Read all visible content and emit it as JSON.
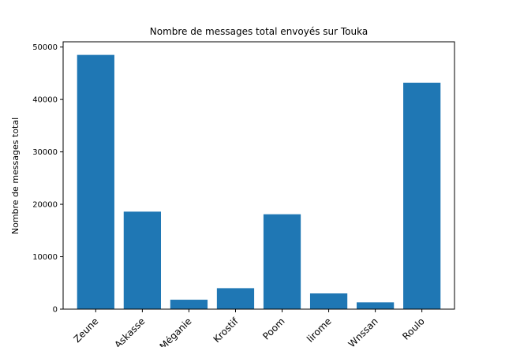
{
  "chart_data": {
    "type": "bar",
    "title": "Nombre de messages total envoyés sur Touka",
    "xlabel": "",
    "ylabel": "Nombre de messages total",
    "categories": [
      "Zeune",
      "Askasse",
      "Méganie",
      "Krostif",
      "Poom",
      "lirome",
      "Wnssan",
      "Roulo"
    ],
    "values": [
      48500,
      18600,
      1800,
      4000,
      18100,
      3000,
      1300,
      43200
    ],
    "ylim": [
      0,
      51000
    ],
    "yticks": [
      0,
      10000,
      20000,
      30000,
      40000,
      50000
    ],
    "grid": false,
    "bar_color": "#1f77b4"
  }
}
